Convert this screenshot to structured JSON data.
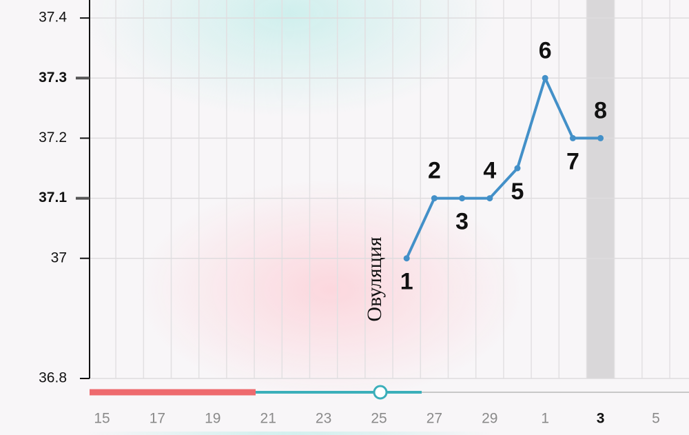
{
  "chart_data": {
    "type": "line",
    "categories": [
      "15",
      null,
      "17",
      null,
      "19",
      null,
      "21",
      null,
      "23",
      null,
      "25",
      null,
      "27",
      null,
      "29",
      null,
      "1",
      null,
      "3",
      null,
      "5",
      null
    ],
    "values": [
      null,
      null,
      null,
      null,
      null,
      null,
      null,
      null,
      null,
      null,
      null,
      37,
      37.1,
      37.1,
      37.1,
      37.15,
      37.3,
      37.2,
      37.2,
      null,
      null,
      null
    ],
    "point_labels": [
      null,
      null,
      null,
      null,
      null,
      null,
      null,
      null,
      null,
      null,
      null,
      "1",
      "2",
      "3",
      "4",
      "5",
      "6",
      "7",
      "8",
      null,
      null,
      null
    ],
    "color": "#4390c8",
    "ylim": [
      36.8,
      37.43
    ],
    "yticks": [
      36.8,
      37,
      37.1,
      37.2,
      37.3,
      37.4
    ],
    "bold_yticks": [
      37.1,
      37.3
    ],
    "grid": true,
    "highlight_category": 18,
    "annotation": {
      "text": "Овуляция",
      "category": 10
    }
  }
}
